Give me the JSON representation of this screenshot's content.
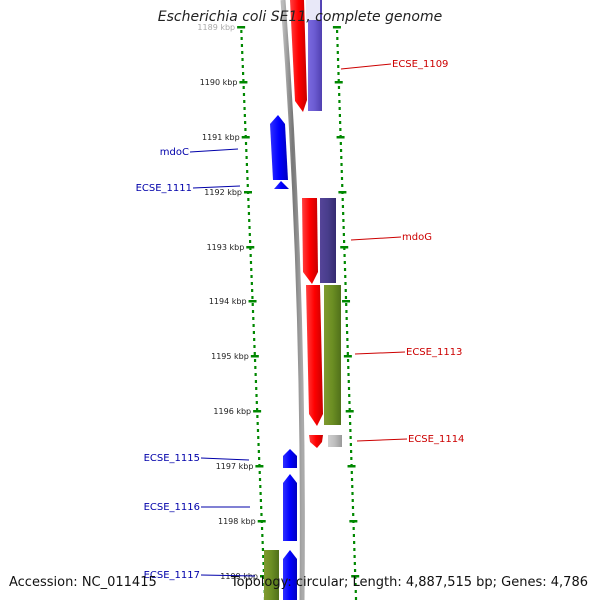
{
  "title": "Escherichia coli SE11, complete genome",
  "accession_text": "Accession: NC_011415",
  "summary_text": "Topology: circular; Length: 4,887,515 bp; Genes: 4,786",
  "colors": {
    "forward_gene": "#ff0000",
    "reverse_gene": "#0000ff",
    "backbone": "#888888",
    "tick": "#008800",
    "label_red": "#cc0000",
    "label_blue": "#0000aa"
  },
  "ruler_ticks": [
    "1189 kbp",
    "1190 kbp",
    "1191 kbp",
    "1192 kbp",
    "1193 kbp",
    "1194 kbp",
    "1195 kbp",
    "1196 kbp",
    "1197 kbp",
    "1198 kbp",
    "1199 kbp"
  ],
  "gene_labels": [
    {
      "text": "ECSE_1109",
      "strand": "forward"
    },
    {
      "text": "mdoC",
      "strand": "reverse"
    },
    {
      "text": "ECSE_1111",
      "strand": "reverse"
    },
    {
      "text": "mdoG",
      "strand": "forward"
    },
    {
      "text": "ECSE_1113",
      "strand": "forward"
    },
    {
      "text": "ECSE_1114",
      "strand": "forward"
    },
    {
      "text": "ECSE_1115",
      "strand": "reverse"
    },
    {
      "text": "ECSE_1116",
      "strand": "reverse"
    },
    {
      "text": "ECSE_1117",
      "strand": "reverse"
    }
  ]
}
